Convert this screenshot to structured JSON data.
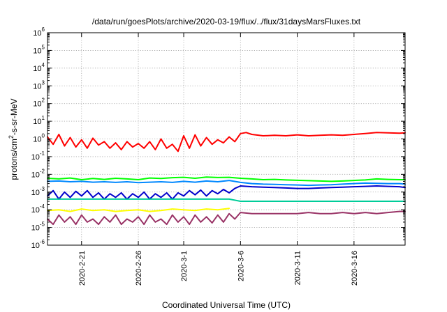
{
  "chart_data": {
    "type": "line",
    "title": "/data/run/goesPlots/archive/2020-03-19/flux/../flux/31daysMarsFluxes.txt",
    "xlabel": "Coordinated Universal Time (UTC)",
    "ylabel": "protons/cm²-s-sr-MeV",
    "yscale": "log",
    "xlim": [
      "2020-02-18",
      "2020-03-20T12:00"
    ],
    "ylim": [
      1e-06,
      1000000.0
    ],
    "grid": true,
    "x_ticks": [
      "2020-2-21",
      "2020-2-26",
      "2020-3-1",
      "2020-3-6",
      "2020-3-11",
      "2020-3-16"
    ],
    "y_ticks": [
      {
        "base": "10",
        "exp": "-6"
      },
      {
        "base": "10",
        "exp": "-5"
      },
      {
        "base": "10",
        "exp": "-4"
      },
      {
        "base": "10",
        "exp": "-3"
      },
      {
        "base": "10",
        "exp": "-2"
      },
      {
        "base": "10",
        "exp": "-1"
      },
      {
        "base": "10",
        "exp": "0"
      },
      {
        "base": "10",
        "exp": "1"
      },
      {
        "base": "10",
        "exp": "2"
      },
      {
        "base": "10",
        "exp": "3"
      },
      {
        "base": "10",
        "exp": "4"
      },
      {
        "base": "10",
        "exp": "5"
      },
      {
        "base": "10",
        "exp": "6"
      }
    ],
    "series": [
      {
        "color": "#ff0000",
        "x": [
          "2020-02-18T00:00",
          "2020-02-18T12:00",
          "2020-02-19T00:00",
          "2020-02-19T12:00",
          "2020-02-20T00:00",
          "2020-02-20T12:00",
          "2020-02-21T00:00",
          "2020-02-21T12:00",
          "2020-02-22T00:00",
          "2020-02-22T12:00",
          "2020-02-23T00:00",
          "2020-02-23T12:00",
          "2020-02-24T00:00",
          "2020-02-24T12:00",
          "2020-02-25T00:00",
          "2020-02-25T12:00",
          "2020-02-26T00:00",
          "2020-02-26T12:00",
          "2020-02-27T00:00",
          "2020-02-27T12:00",
          "2020-02-28T00:00",
          "2020-02-28T12:00",
          "2020-02-29T00:00",
          "2020-02-29T12:00",
          "2020-03-01T00:00",
          "2020-03-01T12:00",
          "2020-03-02T00:00",
          "2020-03-02T12:00",
          "2020-03-03T00:00",
          "2020-03-03T12:00",
          "2020-03-04T00:00",
          "2020-03-04T12:00",
          "2020-03-05T00:00",
          "2020-03-05T12:00",
          "2020-03-06T00:00",
          "2020-03-06T12:00",
          "2020-03-07T00:00",
          "2020-03-08T00:00",
          "2020-03-09T00:00",
          "2020-03-10T00:00",
          "2020-03-11T00:00",
          "2020-03-12T00:00",
          "2020-03-13T00:00",
          "2020-03-14T00:00",
          "2020-03-15T00:00",
          "2020-03-16T00:00",
          "2020-03-17T00:00",
          "2020-03-18T00:00",
          "2020-03-19T00:00",
          "2020-03-20T00:00",
          "2020-03-20T12:00"
        ],
        "y": [
          1.3,
          0.5,
          1.8,
          0.4,
          1.2,
          0.35,
          0.9,
          0.3,
          1.1,
          0.45,
          0.7,
          0.3,
          0.6,
          0.25,
          0.7,
          0.35,
          0.55,
          0.3,
          0.7,
          0.25,
          1.0,
          0.3,
          0.5,
          0.2,
          1.5,
          0.3,
          1.7,
          0.4,
          1.2,
          0.5,
          0.9,
          0.6,
          1.3,
          0.7,
          2.0,
          2.3,
          1.8,
          1.5,
          1.6,
          1.5,
          1.7,
          1.5,
          1.6,
          1.7,
          1.6,
          1.8,
          2.0,
          2.3,
          2.2,
          2.1,
          2.2
        ]
      },
      {
        "color": "#00ff00",
        "x": [
          "2020-02-18T00:00",
          "2020-02-19T00:00",
          "2020-02-20T00:00",
          "2020-02-21T00:00",
          "2020-02-22T00:00",
          "2020-02-23T00:00",
          "2020-02-24T00:00",
          "2020-02-25T00:00",
          "2020-02-26T00:00",
          "2020-02-27T00:00",
          "2020-02-28T00:00",
          "2020-02-29T00:00",
          "2020-03-01T00:00",
          "2020-03-02T00:00",
          "2020-03-03T00:00",
          "2020-03-04T00:00",
          "2020-03-05T00:00",
          "2020-03-06T00:00",
          "2020-03-07T00:00",
          "2020-03-08T00:00",
          "2020-03-09T00:00",
          "2020-03-10T00:00",
          "2020-03-11T00:00",
          "2020-03-12T00:00",
          "2020-03-13T00:00",
          "2020-03-14T00:00",
          "2020-03-15T00:00",
          "2020-03-16T00:00",
          "2020-03-17T00:00",
          "2020-03-18T00:00",
          "2020-03-19T00:00",
          "2020-03-20T00:00",
          "2020-03-20T12:00"
        ],
        "y": [
          0.006,
          0.0055,
          0.0062,
          0.005,
          0.0058,
          0.0052,
          0.006,
          0.0055,
          0.005,
          0.0062,
          0.0058,
          0.0065,
          0.0068,
          0.006,
          0.007,
          0.0066,
          0.0068,
          0.006,
          0.0055,
          0.005,
          0.0052,
          0.0048,
          0.0046,
          0.0044,
          0.0042,
          0.004,
          0.0042,
          0.0045,
          0.0048,
          0.0055,
          0.0052,
          0.005,
          0.005
        ]
      },
      {
        "color": "#0088ff",
        "x": [
          "2020-02-18T00:00",
          "2020-02-19T00:00",
          "2020-02-20T00:00",
          "2020-02-21T00:00",
          "2020-02-22T00:00",
          "2020-02-23T00:00",
          "2020-02-24T00:00",
          "2020-02-25T00:00",
          "2020-02-26T00:00",
          "2020-02-27T00:00",
          "2020-02-28T00:00",
          "2020-02-29T00:00",
          "2020-03-01T00:00",
          "2020-03-02T00:00",
          "2020-03-03T00:00",
          "2020-03-04T00:00",
          "2020-03-05T00:00",
          "2020-03-06T00:00",
          "2020-03-07T00:00",
          "2020-03-08T00:00",
          "2020-03-09T00:00",
          "2020-03-10T00:00",
          "2020-03-11T00:00",
          "2020-03-12T00:00",
          "2020-03-13T00:00",
          "2020-03-14T00:00",
          "2020-03-15T00:00",
          "2020-03-16T00:00",
          "2020-03-17T00:00",
          "2020-03-18T00:00",
          "2020-03-19T00:00",
          "2020-03-20T00:00",
          "2020-03-20T12:00"
        ],
        "y": [
          0.004,
          0.0042,
          0.0038,
          0.004,
          0.0036,
          0.0038,
          0.0035,
          0.0038,
          0.0034,
          0.0036,
          0.0038,
          0.0035,
          0.004,
          0.0036,
          0.0042,
          0.0038,
          0.0045,
          0.0035,
          0.003,
          0.0028,
          0.0027,
          0.0026,
          0.0025,
          0.0024,
          0.0025,
          0.0026,
          0.0028,
          0.003,
          0.0032,
          0.0031,
          0.003,
          0.003,
          0.0028
        ]
      },
      {
        "color": "#0000cc",
        "x": [
          "2020-02-18T00:00",
          "2020-02-18T12:00",
          "2020-02-19T00:00",
          "2020-02-19T12:00",
          "2020-02-20T00:00",
          "2020-02-20T12:00",
          "2020-02-21T00:00",
          "2020-02-21T12:00",
          "2020-02-22T00:00",
          "2020-02-22T12:00",
          "2020-02-23T00:00",
          "2020-02-23T12:00",
          "2020-02-24T00:00",
          "2020-02-24T12:00",
          "2020-02-25T00:00",
          "2020-02-25T12:00",
          "2020-02-26T00:00",
          "2020-02-26T12:00",
          "2020-02-27T00:00",
          "2020-02-27T12:00",
          "2020-02-28T00:00",
          "2020-02-28T12:00",
          "2020-02-29T00:00",
          "2020-02-29T12:00",
          "2020-03-01T00:00",
          "2020-03-01T12:00",
          "2020-03-02T00:00",
          "2020-03-02T12:00",
          "2020-03-03T00:00",
          "2020-03-03T12:00",
          "2020-03-04T00:00",
          "2020-03-04T12:00",
          "2020-03-05T00:00",
          "2020-03-05T12:00",
          "2020-03-06T00:00",
          "2020-03-07T00:00",
          "2020-03-08T00:00",
          "2020-03-09T00:00",
          "2020-03-10T00:00",
          "2020-03-11T00:00",
          "2020-03-12T00:00",
          "2020-03-13T00:00",
          "2020-03-14T00:00",
          "2020-03-15T00:00",
          "2020-03-16T00:00",
          "2020-03-17T00:00",
          "2020-03-18T00:00",
          "2020-03-19T00:00",
          "2020-03-20T00:00",
          "2020-03-20T12:00"
        ],
        "y": [
          0.0006,
          0.0012,
          0.0004,
          0.001,
          0.0005,
          0.0011,
          0.0006,
          0.0012,
          0.0005,
          0.0009,
          0.0004,
          0.0008,
          0.0005,
          0.0009,
          0.0004,
          0.0008,
          0.0005,
          0.001,
          0.0004,
          0.0008,
          0.0005,
          0.0009,
          0.0004,
          0.0009,
          0.0006,
          0.0012,
          0.0007,
          0.0013,
          0.0006,
          0.0012,
          0.0008,
          0.0014,
          0.0009,
          0.0016,
          0.0022,
          0.002,
          0.0019,
          0.0018,
          0.0017,
          0.0016,
          0.0016,
          0.0017,
          0.0018,
          0.0019,
          0.002,
          0.0021,
          0.0022,
          0.0021,
          0.002,
          0.0018
        ]
      },
      {
        "color": "#00cc99",
        "x": [
          "2020-02-18T00:00",
          "2020-02-19T00:00",
          "2020-02-20T00:00",
          "2020-02-21T00:00",
          "2020-02-22T00:00",
          "2020-02-23T00:00",
          "2020-02-24T00:00",
          "2020-02-25T00:00",
          "2020-02-26T00:00",
          "2020-02-27T00:00",
          "2020-02-28T00:00",
          "2020-02-29T00:00",
          "2020-03-01T00:00",
          "2020-03-02T00:00",
          "2020-03-03T00:00",
          "2020-03-04T00:00",
          "2020-03-05T00:00",
          "2020-03-06T00:00",
          "2020-03-07T00:00",
          "2020-03-08T00:00",
          "2020-03-09T00:00",
          "2020-03-10T00:00",
          "2020-03-11T00:00",
          "2020-03-12T00:00",
          "2020-03-13T00:00",
          "2020-03-14T00:00",
          "2020-03-15T00:00",
          "2020-03-16T00:00",
          "2020-03-17T00:00",
          "2020-03-18T00:00",
          "2020-03-19T00:00",
          "2020-03-20T00:00",
          "2020-03-20T12:00"
        ],
        "y": [
          0.0004,
          0.0004,
          0.0004,
          0.0004,
          0.0004,
          0.0004,
          0.0004,
          0.0004,
          0.0004,
          0.0004,
          0.0004,
          0.0004,
          0.0004,
          0.0004,
          0.0004,
          0.0004,
          0.0004,
          0.0003,
          0.0003,
          0.0003,
          0.0003,
          0.0003,
          0.0003,
          0.0003,
          0.0003,
          0.0003,
          0.0003,
          0.0003,
          0.0003,
          0.0003,
          0.0003,
          0.0003,
          0.0003
        ]
      },
      {
        "color": "#ffff00",
        "x": [
          "2020-02-18T00:00",
          "2020-02-19T00:00",
          "2020-02-20T00:00",
          "2020-02-21T00:00",
          "2020-02-22T00:00",
          "2020-02-23T00:00",
          "2020-02-24T00:00",
          "2020-02-25T00:00",
          "2020-02-26T00:00",
          "2020-02-27T00:00",
          "2020-02-28T00:00",
          "2020-02-29T00:00",
          "2020-03-01T00:00",
          "2020-03-02T00:00",
          "2020-03-03T00:00",
          "2020-03-04T00:00",
          "2020-03-05T00:00"
        ],
        "y": [
          9e-05,
          0.0001,
          8e-05,
          0.00011,
          9e-05,
          0.0001,
          8e-05,
          9e-05,
          0.0001,
          8e-05,
          9e-05,
          0.00011,
          0.0001,
          9e-05,
          0.00011,
          0.0001,
          0.00012
        ]
      },
      {
        "color": "#993366",
        "x": [
          "2020-02-18T00:00",
          "2020-02-18T12:00",
          "2020-02-19T00:00",
          "2020-02-19T12:00",
          "2020-02-20T00:00",
          "2020-02-20T12:00",
          "2020-02-21T00:00",
          "2020-02-21T12:00",
          "2020-02-22T00:00",
          "2020-02-22T12:00",
          "2020-02-23T00:00",
          "2020-02-23T12:00",
          "2020-02-24T00:00",
          "2020-02-24T12:00",
          "2020-02-25T00:00",
          "2020-02-25T12:00",
          "2020-02-26T00:00",
          "2020-02-26T12:00",
          "2020-02-27T00:00",
          "2020-02-27T12:00",
          "2020-02-28T00:00",
          "2020-02-28T12:00",
          "2020-02-29T00:00",
          "2020-02-29T12:00",
          "2020-03-01T00:00",
          "2020-03-01T12:00",
          "2020-03-02T00:00",
          "2020-03-02T12:00",
          "2020-03-03T00:00",
          "2020-03-03T12:00",
          "2020-03-04T00:00",
          "2020-03-04T12:00",
          "2020-03-05T00:00",
          "2020-03-05T12:00",
          "2020-03-06T00:00",
          "2020-03-07T00:00",
          "2020-03-08T00:00",
          "2020-03-09T00:00",
          "2020-03-10T00:00",
          "2020-03-11T00:00",
          "2020-03-12T00:00",
          "2020-03-13T00:00",
          "2020-03-14T00:00",
          "2020-03-15T00:00",
          "2020-03-16T00:00",
          "2020-03-17T00:00",
          "2020-03-18T00:00",
          "2020-03-19T00:00",
          "2020-03-20T00:00",
          "2020-03-20T12:00"
        ],
        "y": [
          3e-05,
          1.5e-05,
          5e-05,
          2e-05,
          4e-05,
          1.5e-05,
          5e-05,
          2e-05,
          3e-05,
          1.5e-05,
          4e-05,
          2e-05,
          5e-05,
          1.5e-05,
          3e-05,
          2e-05,
          4e-05,
          1.5e-05,
          5e-05,
          2e-05,
          3e-05,
          1.5e-05,
          5e-05,
          2e-05,
          4e-05,
          1.5e-05,
          5e-05,
          2e-05,
          4e-05,
          1.8e-05,
          5e-05,
          2e-05,
          6e-05,
          3e-05,
          7e-05,
          6e-05,
          6e-05,
          6e-05,
          6e-05,
          6e-05,
          7e-05,
          6e-05,
          6e-05,
          7e-05,
          6e-05,
          7e-05,
          6e-05,
          7e-05,
          8e-05,
          8e-05
        ]
      }
    ]
  }
}
